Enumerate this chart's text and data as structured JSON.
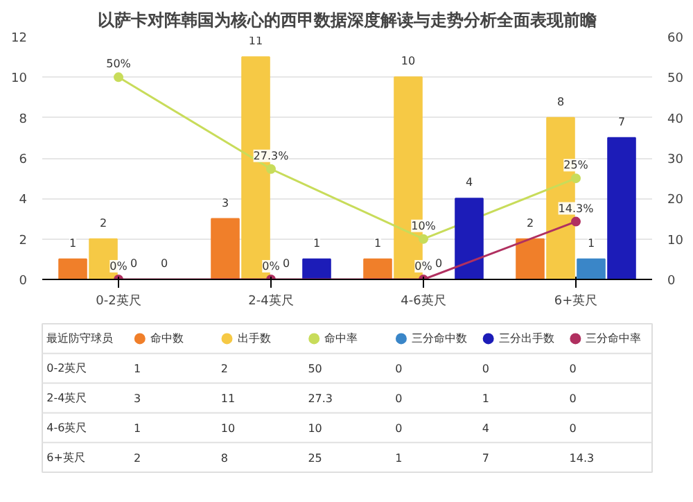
{
  "chart_data": [
    {
      "type": "bar",
      "title": "以萨卡对阵韩国为核心的西甲数据深度解读与走势分析全面表现前瞻",
      "categories": [
        "0-2英尺",
        "2-4英尺",
        "4-6英尺",
        "6+英尺"
      ],
      "series": [
        {
          "color": "#f07f2a",
          "values": [
            1,
            3,
            1,
            2
          ],
          "value_labels": [
            "1",
            "3",
            "1",
            "2"
          ]
        },
        {
          "color": "#f6c945",
          "values": [
            2,
            11,
            10,
            8
          ],
          "value_labels": [
            "2",
            "11",
            "10",
            "8"
          ]
        },
        {
          "type": "line",
          "axis": "y2",
          "color": "#c8dc5a",
          "values": [
            50,
            27.3,
            10,
            25
          ],
          "value_labels": [
            "50%",
            "27.3%",
            "10%",
            "25%"
          ]
        },
        {
          "color": "#3a86c8",
          "values": [
            0,
            0,
            0,
            1
          ],
          "value_labels": [
            "0",
            "0",
            "0",
            "1"
          ]
        },
        {
          "color": "#1c1cb8",
          "values": [
            0,
            1,
            4,
            7
          ],
          "value_labels": [
            "0",
            "1",
            "4",
            "7"
          ]
        },
        {
          "type": "line",
          "axis": "y2",
          "color": "#b03060",
          "values": [
            0,
            0,
            0,
            14.3
          ],
          "value_labels": [
            "0%",
            "0%",
            "0%",
            "14.3%"
          ]
        }
      ],
      "ylim": [
        0,
        12
      ],
      "yticks": [
        0,
        2,
        4,
        6,
        8,
        10,
        12
      ],
      "y2lim": [
        0,
        60
      ],
      "y2ticks": [
        0,
        10,
        20,
        30,
        40,
        50,
        60
      ],
      "grid": "y",
      "marker": "circle",
      "line_style": "solid"
    },
    {
      "type": "other",
      "legend_title": "最近防守球员",
      "categories": [
        "0-2英尺",
        "2-4英尺",
        "4-6英尺",
        "6+英尺"
      ],
      "series": [
        {
          "name": "命中数",
          "color": "#f07f2a",
          "values": [
            1,
            3,
            1,
            2
          ]
        },
        {
          "name": "出手数",
          "color": "#f6c945",
          "values": [
            2,
            11,
            10,
            8
          ]
        },
        {
          "name": "命中率",
          "color": "#c8dc5a",
          "values": [
            50,
            27.3,
            10,
            25
          ]
        },
        {
          "name": "三分命中数",
          "color": "#3a86c8",
          "values": [
            0,
            0,
            0,
            1
          ]
        },
        {
          "name": "三分出手数",
          "color": "#1c1cb8",
          "values": [
            0,
            1,
            4,
            7
          ]
        },
        {
          "name": "三分命中率",
          "color": "#b03060",
          "values": [
            0,
            0,
            0,
            14.3
          ]
        }
      ],
      "data_labels": true
    }
  ]
}
